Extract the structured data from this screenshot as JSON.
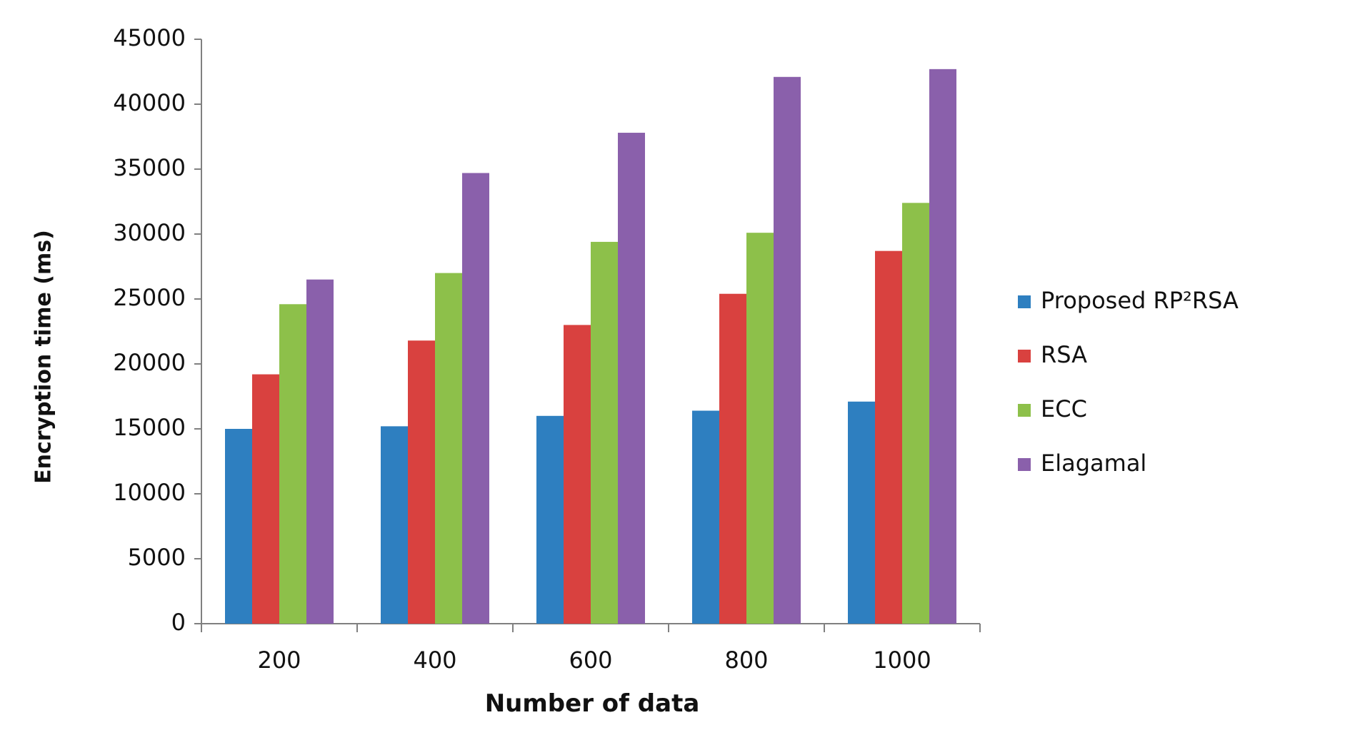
{
  "chart_data": {
    "type": "bar",
    "title": "",
    "xlabel": "Number of data",
    "ylabel": "Encryption time (ms)",
    "categories": [
      "200",
      "400",
      "600",
      "800",
      "1000"
    ],
    "ylim": [
      0,
      45000
    ],
    "yticks": [
      0,
      5000,
      10000,
      15000,
      20000,
      25000,
      30000,
      35000,
      40000,
      45000
    ],
    "grid": false,
    "legend_position": "right",
    "series": [
      {
        "name": "Proposed RP²RSA",
        "color": "#2e7fc0",
        "values": [
          15000,
          15200,
          16000,
          16400,
          17100
        ]
      },
      {
        "name": "RSA",
        "color": "#d9413f",
        "values": [
          19200,
          21800,
          23000,
          25400,
          28700
        ]
      },
      {
        "name": "ECC",
        "color": "#8dc04a",
        "values": [
          24600,
          27000,
          29400,
          30100,
          32400
        ]
      },
      {
        "name": "Elagamal",
        "color": "#8a60ab",
        "values": [
          26500,
          34700,
          37800,
          42100,
          42700
        ]
      }
    ]
  }
}
